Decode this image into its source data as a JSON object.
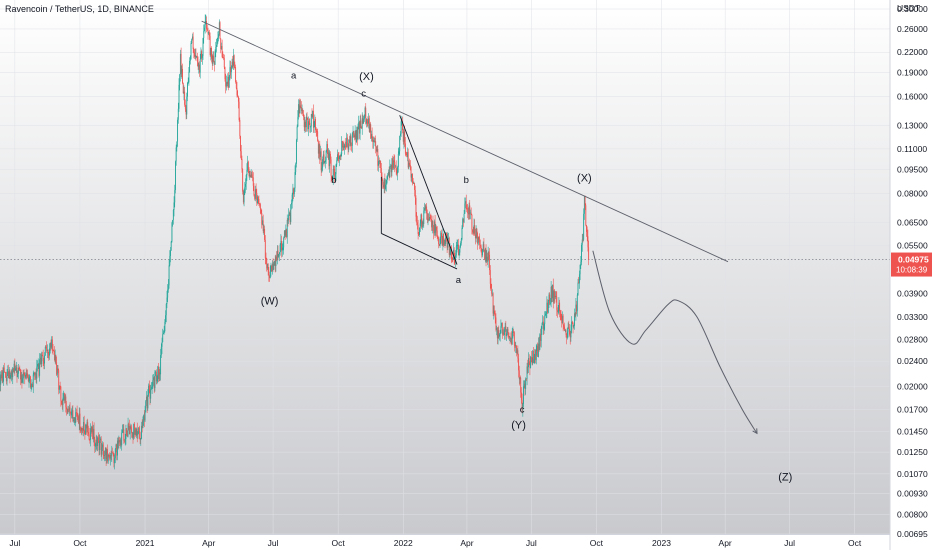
{
  "header": {
    "title": "Ravencoin / TetherUS, 1D, BINANCE"
  },
  "axis": {
    "currency": "USDT"
  },
  "price_tag": {
    "price": "0.04975",
    "countdown": "10:08:39",
    "color": "#ef5350"
  },
  "colors": {
    "up": "#26a69a",
    "down": "#ef5350",
    "line": "#787b86",
    "text": "#131722"
  },
  "chart_data": {
    "type": "candlestick",
    "title": "Ravencoin / TetherUS, 1D, BINANCE",
    "interval": "1D",
    "exchange": "BINANCE",
    "ylabel": "USDT",
    "y_scale": "log",
    "ylim": [
      0.00695,
      0.32
    ],
    "xlim": [
      "2020-06-10",
      "2023-11-20"
    ],
    "y_ticks": [
      "0.30000",
      "0.26000",
      "0.22000",
      "0.19000",
      "0.16000",
      "0.13000",
      "0.11000",
      "0.09500",
      "0.08000",
      "0.06500",
      "0.05500",
      "0.03900",
      "0.03300",
      "0.02800",
      "0.02400",
      "0.02000",
      "0.01700",
      "0.01450",
      "0.01250",
      "0.01070",
      "0.00930",
      "0.00800",
      "0.00695"
    ],
    "x_ticks": [
      {
        "label": "Jul",
        "date": "2020-07-01"
      },
      {
        "label": "Oct",
        "date": "2020-10-01"
      },
      {
        "label": "2021",
        "date": "2021-01-01"
      },
      {
        "label": "Apr",
        "date": "2021-04-01"
      },
      {
        "label": "Jul",
        "date": "2021-07-01"
      },
      {
        "label": "Oct",
        "date": "2021-10-01"
      },
      {
        "label": "2022",
        "date": "2022-01-01"
      },
      {
        "label": "Apr",
        "date": "2022-04-01"
      },
      {
        "label": "Jul",
        "date": "2022-07-01"
      },
      {
        "label": "Oct",
        "date": "2022-10-01"
      },
      {
        "label": "2023",
        "date": "2023-01-01"
      },
      {
        "label": "Apr",
        "date": "2023-04-01"
      },
      {
        "label": "Jul",
        "date": "2023-07-01"
      },
      {
        "label": "Oct",
        "date": "2023-10-01"
      }
    ],
    "last_price": 0.04975,
    "price_path": [
      [
        "2020-06-10",
        0.0215
      ],
      [
        "2020-07-05",
        0.0225
      ],
      [
        "2020-07-25",
        0.0205
      ],
      [
        "2020-08-10",
        0.0245
      ],
      [
        "2020-08-22",
        0.0275
      ],
      [
        "2020-09-05",
        0.0185
      ],
      [
        "2020-09-25",
        0.016
      ],
      [
        "2020-10-20",
        0.014
      ],
      [
        "2020-11-15",
        0.0118
      ],
      [
        "2020-11-25",
        0.0135
      ],
      [
        "2020-12-10",
        0.015
      ],
      [
        "2020-12-25",
        0.014
      ],
      [
        "2021-01-06",
        0.019
      ],
      [
        "2021-01-22",
        0.023
      ],
      [
        "2021-02-02",
        0.039
      ],
      [
        "2021-02-12",
        0.085
      ],
      [
        "2021-02-20",
        0.21
      ],
      [
        "2021-02-27",
        0.14
      ],
      [
        "2021-03-08",
        0.25
      ],
      [
        "2021-03-18",
        0.19
      ],
      [
        "2021-03-28",
        0.27
      ],
      [
        "2021-04-08",
        0.2
      ],
      [
        "2021-04-16",
        0.26
      ],
      [
        "2021-04-26",
        0.17
      ],
      [
        "2021-05-06",
        0.21
      ],
      [
        "2021-05-14",
        0.14
      ],
      [
        "2021-05-20",
        0.075
      ],
      [
        "2021-05-26",
        0.098
      ],
      [
        "2021-06-05",
        0.08
      ],
      [
        "2021-06-16",
        0.065
      ],
      [
        "2021-06-24",
        0.044
      ],
      [
        "2021-07-02",
        0.049
      ],
      [
        "2021-07-14",
        0.055
      ],
      [
        "2021-07-24",
        0.066
      ],
      [
        "2021-07-31",
        0.084
      ],
      [
        "2021-08-06",
        0.15
      ],
      [
        "2021-08-16",
        0.13
      ],
      [
        "2021-08-26",
        0.14
      ],
      [
        "2021-09-07",
        0.1
      ],
      [
        "2021-09-15",
        0.11
      ],
      [
        "2021-09-24",
        0.09
      ],
      [
        "2021-10-06",
        0.115
      ],
      [
        "2021-10-18",
        0.115
      ],
      [
        "2021-10-28",
        0.125
      ],
      [
        "2021-11-08",
        0.142
      ],
      [
        "2021-11-18",
        0.118
      ],
      [
        "2021-11-28",
        0.1
      ],
      [
        "2021-12-06",
        0.084
      ],
      [
        "2021-12-14",
        0.098
      ],
      [
        "2021-12-24",
        0.098
      ],
      [
        "2021-12-29",
        0.132
      ],
      [
        "2022-01-06",
        0.105
      ],
      [
        "2022-01-14",
        0.09
      ],
      [
        "2022-01-22",
        0.062
      ],
      [
        "2022-02-02",
        0.07
      ],
      [
        "2022-02-10",
        0.066
      ],
      [
        "2022-02-20",
        0.056
      ],
      [
        "2022-03-02",
        0.059
      ],
      [
        "2022-03-12",
        0.05
      ],
      [
        "2022-03-22",
        0.055
      ],
      [
        "2022-03-30",
        0.076
      ],
      [
        "2022-04-10",
        0.063
      ],
      [
        "2022-04-22",
        0.053
      ],
      [
        "2022-05-02",
        0.05
      ],
      [
        "2022-05-08",
        0.035
      ],
      [
        "2022-05-14",
        0.028
      ],
      [
        "2022-05-22",
        0.031
      ],
      [
        "2022-06-02",
        0.029
      ],
      [
        "2022-06-10",
        0.027
      ],
      [
        "2022-06-18",
        0.018
      ],
      [
        "2022-06-28",
        0.024
      ],
      [
        "2022-07-08",
        0.025
      ],
      [
        "2022-07-20",
        0.033
      ],
      [
        "2022-07-30",
        0.04
      ],
      [
        "2022-08-10",
        0.034
      ],
      [
        "2022-08-22",
        0.029
      ],
      [
        "2022-09-01",
        0.033
      ],
      [
        "2022-09-08",
        0.046
      ],
      [
        "2022-09-12",
        0.06
      ],
      [
        "2022-09-14",
        0.076
      ],
      [
        "2022-09-17",
        0.062
      ],
      [
        "2022-09-20",
        0.04975
      ]
    ],
    "trendline": {
      "from": [
        "2021-03-22",
        0.275
      ],
      "to": [
        "2023-04-05",
        0.049
      ]
    },
    "channel_lines": [
      {
        "from": [
          "2021-12-27",
          0.14
        ],
        "to": [
          "2022-03-18",
          0.048
        ]
      },
      {
        "from": [
          "2021-12-01",
          0.06
        ],
        "to": [
          "2022-03-18",
          0.0465
        ]
      },
      {
        "from": [
          "2021-12-01",
          0.06
        ],
        "to": [
          "2021-12-01",
          0.09
        ]
      }
    ],
    "projection_path": [
      [
        "2022-09-26",
        0.053
      ],
      [
        "2022-10-20",
        0.034
      ],
      [
        "2022-11-20",
        0.0272
      ],
      [
        "2022-12-10",
        0.03
      ],
      [
        "2023-01-10",
        0.036
      ],
      [
        "2023-01-25",
        0.037
      ],
      [
        "2023-02-20",
        0.033
      ],
      [
        "2023-03-25",
        0.023
      ],
      [
        "2023-04-25",
        0.017
      ],
      [
        "2023-05-16",
        0.0143
      ]
    ],
    "wave_labels": [
      {
        "text": "(W)",
        "date": "2021-06-26",
        "price": 0.036,
        "size": "large"
      },
      {
        "text": "a",
        "date": "2021-07-30",
        "price": 0.182,
        "size": "small"
      },
      {
        "text": "b",
        "date": "2021-09-25",
        "price": 0.086,
        "size": "small"
      },
      {
        "text": "(X)",
        "date": "2021-11-10",
        "price": 0.18,
        "size": "large"
      },
      {
        "text": "c",
        "date": "2021-11-06",
        "price": 0.16,
        "size": "small"
      },
      {
        "text": "b",
        "date": "2022-03-31",
        "price": 0.086,
        "size": "small"
      },
      {
        "text": "a",
        "date": "2022-03-20",
        "price": 0.042,
        "size": "small"
      },
      {
        "text": "c",
        "date": "2022-06-18",
        "price": 0.0166,
        "size": "small"
      },
      {
        "text": "(Y)",
        "date": "2022-06-13",
        "price": 0.0148,
        "size": "large"
      },
      {
        "text": "(X)",
        "date": "2022-09-14",
        "price": 0.087,
        "size": "large"
      },
      {
        "text": "(Z)",
        "date": "2023-06-25",
        "price": 0.0102,
        "size": "large"
      }
    ]
  }
}
